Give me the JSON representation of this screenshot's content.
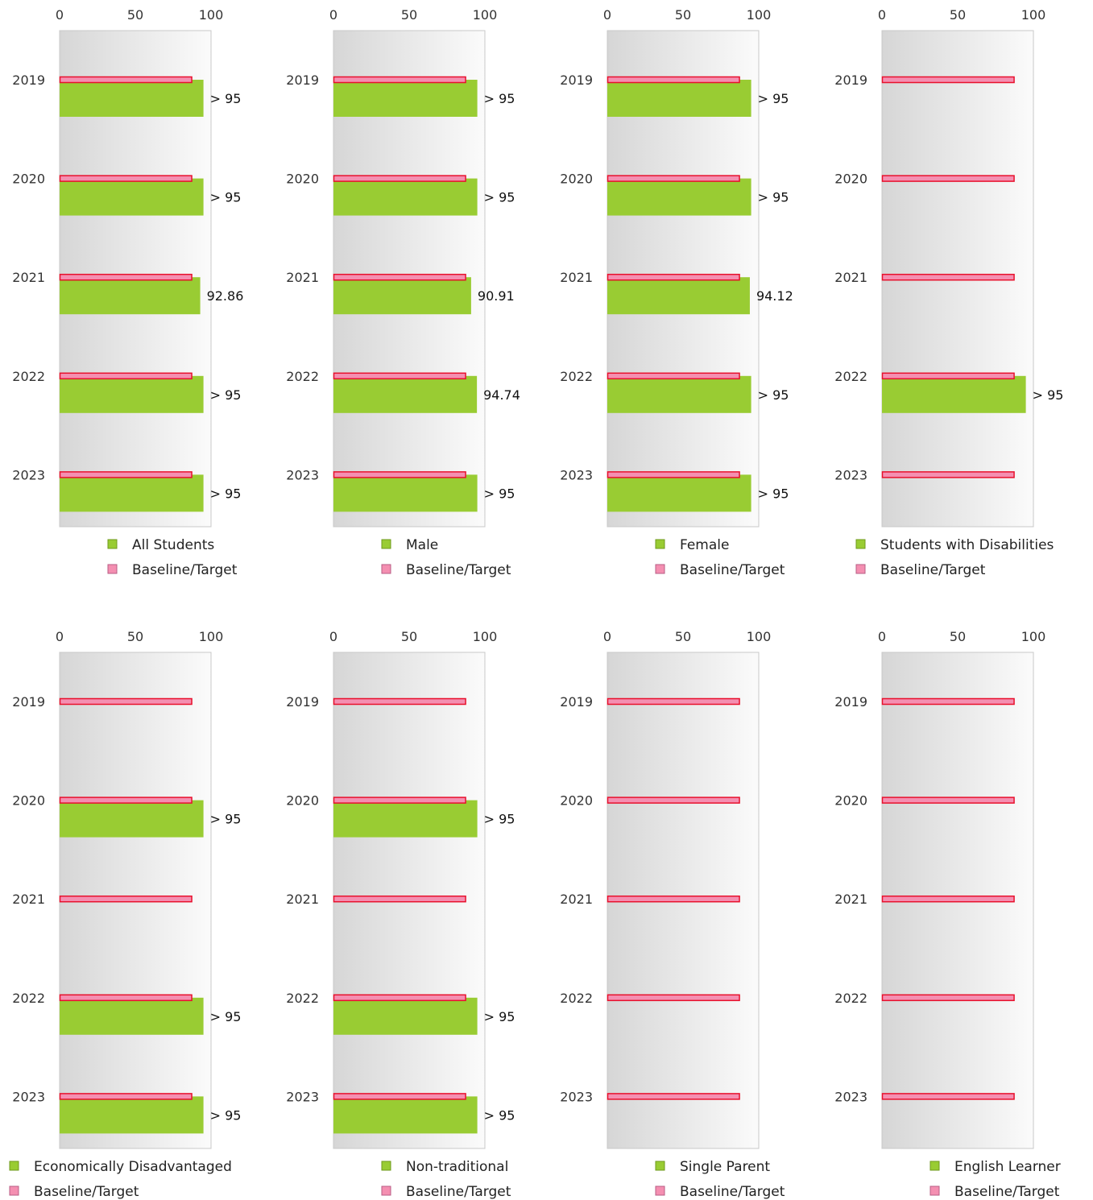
{
  "chart_data": [
    {
      "type": "bar",
      "orientation": "horizontal",
      "categories": [
        "2019",
        "2020",
        "2021",
        "2022",
        "2023"
      ],
      "xlim": [
        0,
        100
      ],
      "xticks": [
        0,
        50,
        100
      ],
      "series": [
        {
          "name": "All Students",
          "values": [
            95,
            95,
            92.86,
            95,
            95
          ],
          "labels": [
            "> 95",
            "> 95",
            "92.86",
            "> 95",
            "> 95"
          ],
          "color": "#99cc33"
        },
        {
          "name": "Baseline/Target",
          "values": [
            87,
            87,
            87,
            87,
            87
          ],
          "color": "#f48fb1"
        }
      ]
    },
    {
      "type": "bar",
      "orientation": "horizontal",
      "categories": [
        "2019",
        "2020",
        "2021",
        "2022",
        "2023"
      ],
      "xlim": [
        0,
        100
      ],
      "xticks": [
        0,
        50,
        100
      ],
      "series": [
        {
          "name": "Male",
          "values": [
            95,
            95,
            90.91,
            94.74,
            95
          ],
          "labels": [
            "> 95",
            "> 95",
            "90.91",
            "94.74",
            "> 95"
          ],
          "color": "#99cc33"
        },
        {
          "name": "Baseline/Target",
          "values": [
            87,
            87,
            87,
            87,
            87
          ],
          "color": "#f48fb1"
        }
      ]
    },
    {
      "type": "bar",
      "orientation": "horizontal",
      "categories": [
        "2019",
        "2020",
        "2021",
        "2022",
        "2023"
      ],
      "xlim": [
        0,
        100
      ],
      "xticks": [
        0,
        50,
        100
      ],
      "series": [
        {
          "name": "Female",
          "values": [
            95,
            95,
            94.12,
            95,
            95
          ],
          "labels": [
            "> 95",
            "> 95",
            "94.12",
            "> 95",
            "> 95"
          ],
          "color": "#99cc33"
        },
        {
          "name": "Baseline/Target",
          "values": [
            87,
            87,
            87,
            87,
            87
          ],
          "color": "#f48fb1"
        }
      ]
    },
    {
      "type": "bar",
      "orientation": "horizontal",
      "categories": [
        "2019",
        "2020",
        "2021",
        "2022",
        "2023"
      ],
      "xlim": [
        0,
        100
      ],
      "xticks": [
        0,
        50,
        100
      ],
      "series": [
        {
          "name": "Students with Disabilities",
          "values": [
            null,
            null,
            null,
            95,
            null
          ],
          "labels": [
            null,
            null,
            null,
            "> 95",
            null
          ],
          "color": "#99cc33"
        },
        {
          "name": "Baseline/Target",
          "values": [
            87,
            87,
            87,
            87,
            87
          ],
          "color": "#f48fb1"
        }
      ]
    },
    {
      "type": "bar",
      "orientation": "horizontal",
      "categories": [
        "2019",
        "2020",
        "2021",
        "2022",
        "2023"
      ],
      "xlim": [
        0,
        100
      ],
      "xticks": [
        0,
        50,
        100
      ],
      "series": [
        {
          "name": "Economically Disadvantaged",
          "values": [
            null,
            95,
            null,
            95,
            95
          ],
          "labels": [
            null,
            "> 95",
            null,
            "> 95",
            "> 95"
          ],
          "color": "#99cc33"
        },
        {
          "name": "Baseline/Target",
          "values": [
            87,
            87,
            87,
            87,
            87
          ],
          "color": "#f48fb1"
        }
      ]
    },
    {
      "type": "bar",
      "orientation": "horizontal",
      "categories": [
        "2019",
        "2020",
        "2021",
        "2022",
        "2023"
      ],
      "xlim": [
        0,
        100
      ],
      "xticks": [
        0,
        50,
        100
      ],
      "series": [
        {
          "name": "Non-traditional",
          "values": [
            null,
            95,
            null,
            95,
            95
          ],
          "labels": [
            null,
            "> 95",
            null,
            "> 95",
            "> 95"
          ],
          "color": "#99cc33"
        },
        {
          "name": "Baseline/Target",
          "values": [
            87,
            87,
            87,
            87,
            87
          ],
          "color": "#f48fb1"
        }
      ]
    },
    {
      "type": "bar",
      "orientation": "horizontal",
      "categories": [
        "2019",
        "2020",
        "2021",
        "2022",
        "2023"
      ],
      "xlim": [
        0,
        100
      ],
      "xticks": [
        0,
        50,
        100
      ],
      "series": [
        {
          "name": "Single Parent",
          "values": [
            null,
            null,
            null,
            null,
            null
          ],
          "labels": [
            null,
            null,
            null,
            null,
            null
          ],
          "color": "#99cc33"
        },
        {
          "name": "Baseline/Target",
          "values": [
            87,
            87,
            87,
            87,
            87
          ],
          "color": "#f48fb1"
        }
      ]
    },
    {
      "type": "bar",
      "orientation": "horizontal",
      "categories": [
        "2019",
        "2020",
        "2021",
        "2022",
        "2023"
      ],
      "xlim": [
        0,
        100
      ],
      "xticks": [
        0,
        50,
        100
      ],
      "series": [
        {
          "name": "English Learner",
          "values": [
            null,
            null,
            null,
            null,
            null
          ],
          "labels": [
            null,
            null,
            null,
            null,
            null
          ],
          "color": "#99cc33"
        },
        {
          "name": "Baseline/Target",
          "values": [
            87,
            87,
            87,
            87,
            87
          ],
          "color": "#f48fb1"
        }
      ]
    }
  ]
}
